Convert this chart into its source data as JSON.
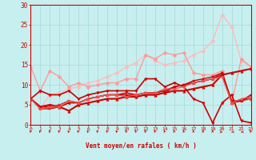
{
  "xlabel": "Vent moyen/en rafales ( km/h )",
  "xlim": [
    0,
    23
  ],
  "ylim": [
    0,
    30
  ],
  "background_color": "#c8efef",
  "grid_color": "#aadddd",
  "lines": [
    {
      "x": [
        0,
        1,
        2,
        3,
        4,
        5,
        6,
        7,
        8,
        9,
        10,
        11,
        12,
        13,
        14,
        15,
        16,
        17,
        18,
        19,
        20,
        21,
        22,
        23
      ],
      "y": [
        6.5,
        4.0,
        7.5,
        8.0,
        9.0,
        9.5,
        10.5,
        11.0,
        12.0,
        13.0,
        14.5,
        15.5,
        17.5,
        16.0,
        15.0,
        15.5,
        16.0,
        17.5,
        18.5,
        21.0,
        27.5,
        24.5,
        16.0,
        14.5
      ],
      "color": "#ffbbbb",
      "linewidth": 1.0,
      "marker": "D",
      "markersize": 2.5
    },
    {
      "x": [
        0,
        1,
        2,
        3,
        4,
        5,
        6,
        7,
        8,
        9,
        10,
        11,
        12,
        13,
        14,
        15,
        16,
        17,
        18,
        19,
        20,
        21,
        22,
        23
      ],
      "y": [
        14.5,
        8.5,
        13.5,
        12.0,
        9.5,
        10.5,
        9.5,
        10.0,
        10.5,
        10.5,
        11.5,
        11.5,
        17.5,
        16.5,
        18.0,
        17.5,
        18.0,
        13.0,
        12.5,
        12.5,
        13.5,
        5.5,
        16.5,
        14.5
      ],
      "color": "#ff9999",
      "linewidth": 1.0,
      "marker": "D",
      "markersize": 2.5
    },
    {
      "x": [
        0,
        1,
        2,
        3,
        4,
        5,
        6,
        7,
        8,
        9,
        10,
        11,
        12,
        13,
        14,
        15,
        16,
        17,
        18,
        19,
        20,
        21,
        22,
        23
      ],
      "y": [
        6.5,
        8.5,
        7.5,
        7.5,
        8.5,
        6.5,
        7.5,
        8.0,
        8.5,
        8.5,
        8.5,
        8.5,
        11.5,
        11.5,
        9.5,
        10.5,
        9.5,
        6.5,
        5.5,
        0.5,
        5.5,
        7.5,
        1.0,
        0.5
      ],
      "color": "#cc0000",
      "linewidth": 1.2,
      "marker": "v",
      "markersize": 2.5
    },
    {
      "x": [
        0,
        1,
        2,
        3,
        4,
        5,
        6,
        7,
        8,
        9,
        10,
        11,
        12,
        13,
        14,
        15,
        16,
        17,
        18,
        19,
        20,
        21,
        22,
        23
      ],
      "y": [
        6.5,
        4.5,
        5.0,
        4.5,
        3.5,
        5.0,
        5.5,
        6.0,
        6.5,
        6.5,
        7.0,
        7.0,
        7.5,
        7.5,
        8.0,
        8.5,
        8.5,
        9.0,
        9.5,
        10.0,
        12.5,
        13.0,
        13.5,
        14.0
      ],
      "color": "#cc0000",
      "linewidth": 1.5,
      "marker": "^",
      "markersize": 2.5
    },
    {
      "x": [
        0,
        1,
        2,
        3,
        4,
        5,
        6,
        7,
        8,
        9,
        10,
        11,
        12,
        13,
        14,
        15,
        16,
        17,
        18,
        19,
        20,
        21,
        22,
        23
      ],
      "y": [
        6.5,
        4.5,
        4.5,
        5.0,
        6.0,
        5.5,
        6.5,
        7.0,
        7.5,
        7.5,
        7.5,
        7.5,
        8.0,
        8.0,
        8.5,
        9.5,
        10.0,
        10.5,
        11.0,
        11.5,
        13.0,
        5.5,
        6.0,
        6.5
      ],
      "color": "#dd3333",
      "linewidth": 1.0,
      "marker": ">",
      "markersize": 2.5
    },
    {
      "x": [
        0,
        1,
        2,
        3,
        4,
        5,
        6,
        7,
        8,
        9,
        10,
        11,
        12,
        13,
        14,
        15,
        16,
        17,
        18,
        19,
        20,
        21,
        22,
        23
      ],
      "y": [
        6.5,
        4.5,
        4.5,
        4.5,
        5.5,
        5.5,
        6.5,
        7.0,
        7.5,
        7.5,
        7.5,
        7.0,
        7.5,
        7.5,
        8.0,
        9.5,
        10.0,
        10.5,
        11.0,
        11.5,
        12.5,
        5.5,
        6.0,
        7.0
      ],
      "color": "#cc0000",
      "linewidth": 1.0,
      "marker": "<",
      "markersize": 2.0
    },
    {
      "x": [
        0,
        1,
        2,
        3,
        4,
        5,
        6,
        7,
        8,
        9,
        10,
        11,
        12,
        13,
        14,
        15,
        16,
        17,
        18,
        19,
        20,
        21,
        22,
        23
      ],
      "y": [
        6.5,
        4.0,
        4.0,
        4.5,
        5.5,
        5.5,
        6.5,
        7.0,
        7.5,
        7.5,
        8.0,
        7.5,
        8.0,
        8.0,
        8.5,
        9.5,
        10.0,
        11.0,
        11.5,
        12.0,
        13.0,
        6.0,
        6.0,
        7.5
      ],
      "color": "#cc0000",
      "linewidth": 1.0,
      "marker": "s",
      "markersize": 2.0
    },
    {
      "x": [
        0,
        1,
        2,
        3,
        4,
        5,
        6,
        7,
        8,
        9,
        10,
        11,
        12,
        13,
        14,
        15,
        16,
        17,
        18,
        19,
        20,
        21,
        22,
        23
      ],
      "y": [
        6.5,
        4.0,
        4.5,
        4.5,
        6.0,
        5.5,
        6.5,
        7.0,
        7.5,
        7.5,
        7.0,
        7.5,
        8.0,
        8.0,
        9.0,
        9.0,
        9.5,
        10.5,
        11.0,
        11.5,
        12.0,
        5.5,
        6.5,
        7.0
      ],
      "color": "#ee5555",
      "linewidth": 1.0,
      "marker": "o",
      "markersize": 2.0
    }
  ],
  "xtick_labels": [
    "0",
    "1",
    "2",
    "3",
    "4",
    "5",
    "6",
    "7",
    "8",
    "9",
    "10",
    "11",
    "12",
    "13",
    "14",
    "15",
    "16",
    "17",
    "18",
    "19",
    "20",
    "21",
    "22",
    "23"
  ],
  "ytick_labels": [
    "0",
    "5",
    "10",
    "15",
    "20",
    "25",
    "30"
  ],
  "ytick_values": [
    0,
    5,
    10,
    15,
    20,
    25,
    30
  ],
  "arrow_angles_deg": [
    200,
    200,
    210,
    220,
    220,
    220,
    215,
    215,
    210,
    210,
    210,
    210,
    210,
    205,
    200,
    195,
    195,
    185,
    180,
    175,
    90,
    270,
    270,
    200
  ]
}
